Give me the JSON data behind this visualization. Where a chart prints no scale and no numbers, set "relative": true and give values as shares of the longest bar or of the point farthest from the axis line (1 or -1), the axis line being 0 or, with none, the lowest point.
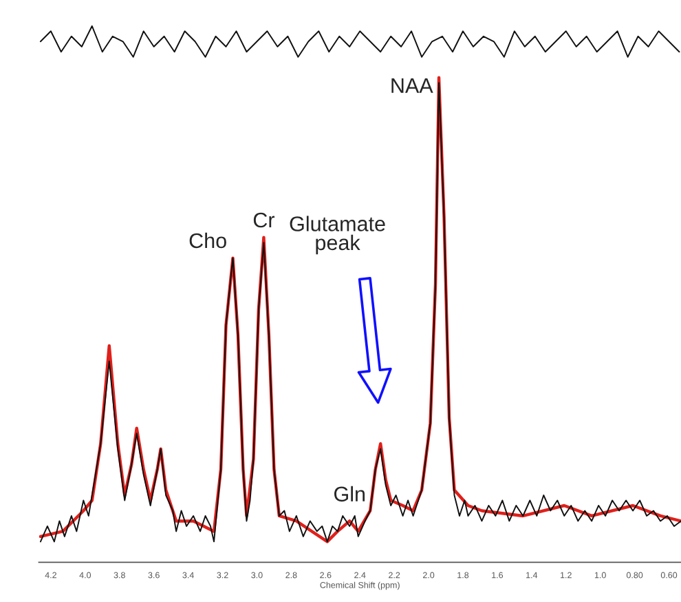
{
  "chart_data": {
    "type": "line",
    "relative": true,
    "xlabel": "Chemical Shift (ppm)",
    "xlim": [
      4.27,
      0.53
    ],
    "xticks": [
      4.2,
      {
        "value": 4,
        "label": "4.0"
      },
      3.8,
      3.6,
      3.4,
      3.2,
      {
        "value": 3,
        "label": "3.0"
      },
      2.8,
      2.6,
      2.4,
      2.2,
      {
        "value": 2,
        "label": "2.0"
      },
      1.8,
      1.6,
      1.4,
      1.2,
      {
        "value": 1,
        "label": "1.0"
      },
      {
        "value": 0.8,
        "label": "0.80"
      },
      {
        "value": 0.6,
        "label": "0.60"
      }
    ],
    "tick_labels": "x",
    "grid": false,
    "marker": "none",
    "line_style": "solid",
    "series": [
      {
        "color": "#e0201b",
        "x": [
          4.26,
          4.13,
          4.01,
          3.96,
          3.91,
          3.86,
          3.81,
          3.77,
          3.73,
          3.7,
          3.66,
          3.62,
          3.58,
          3.56,
          3.53,
          3.47,
          3.37,
          3.25,
          3.21,
          3.18,
          3.14,
          3.11,
          3.08,
          3.06,
          3.02,
          2.99,
          2.96,
          2.93,
          2.9,
          2.87,
          2.77,
          2.59,
          2.53,
          2.46,
          2.41,
          2.34,
          2.31,
          2.28,
          2.25,
          2.22,
          2.15,
          2.09,
          2.04,
          1.99,
          1.96,
          1.94,
          1.91,
          1.88,
          1.85,
          1.77,
          1.69,
          1.45,
          1.21,
          1.05,
          0.81,
          0.65,
          0.53
        ],
        "values": [
          0.01,
          0.02,
          0.06,
          0.08,
          0.19,
          0.38,
          0.19,
          0.09,
          0.15,
          0.22,
          0.14,
          0.08,
          0.14,
          0.18,
          0.1,
          0.04,
          0.04,
          0.02,
          0.14,
          0.42,
          0.55,
          0.4,
          0.14,
          0.05,
          0.16,
          0.45,
          0.59,
          0.4,
          0.14,
          0.05,
          0.04,
          0.0,
          0.02,
          0.04,
          0.02,
          0.06,
          0.14,
          0.19,
          0.12,
          0.08,
          0.07,
          0.06,
          0.1,
          0.23,
          0.5,
          0.9,
          0.63,
          0.24,
          0.1,
          0.07,
          0.06,
          0.05,
          0.07,
          0.05,
          0.07,
          0.05,
          0.04
        ]
      },
      {
        "color": "#111111",
        "x": [
          4.26,
          4.22,
          4.18,
          4.15,
          4.12,
          4.08,
          4.05,
          4.01,
          3.98,
          3.96,
          3.91,
          3.86,
          3.81,
          3.77,
          3.73,
          3.7,
          3.66,
          3.62,
          3.58,
          3.56,
          3.53,
          3.49,
          3.47,
          3.44,
          3.41,
          3.37,
          3.33,
          3.3,
          3.27,
          3.25,
          3.21,
          3.18,
          3.14,
          3.11,
          3.08,
          3.06,
          3.04,
          3.02,
          2.99,
          2.96,
          2.93,
          2.9,
          2.87,
          2.84,
          2.81,
          2.77,
          2.73,
          2.69,
          2.65,
          2.62,
          2.59,
          2.56,
          2.53,
          2.5,
          2.46,
          2.43,
          2.41,
          2.37,
          2.34,
          2.31,
          2.28,
          2.25,
          2.22,
          2.19,
          2.15,
          2.12,
          2.09,
          2.04,
          1.99,
          1.96,
          1.94,
          1.91,
          1.88,
          1.85,
          1.82,
          1.79,
          1.77,
          1.73,
          1.69,
          1.65,
          1.61,
          1.57,
          1.53,
          1.49,
          1.45,
          1.41,
          1.37,
          1.33,
          1.29,
          1.25,
          1.21,
          1.17,
          1.13,
          1.09,
          1.05,
          1.01,
          0.97,
          0.93,
          0.89,
          0.85,
          0.81,
          0.77,
          0.73,
          0.69,
          0.65,
          0.61,
          0.57,
          0.53
        ],
        "values": [
          0.0,
          0.03,
          0.0,
          0.04,
          0.01,
          0.05,
          0.02,
          0.08,
          0.05,
          0.09,
          0.19,
          0.35,
          0.18,
          0.08,
          0.15,
          0.21,
          0.13,
          0.07,
          0.14,
          0.18,
          0.09,
          0.06,
          0.02,
          0.06,
          0.03,
          0.05,
          0.02,
          0.05,
          0.03,
          0.0,
          0.14,
          0.42,
          0.55,
          0.4,
          0.14,
          0.04,
          0.08,
          0.16,
          0.45,
          0.58,
          0.4,
          0.14,
          0.05,
          0.06,
          0.02,
          0.05,
          0.01,
          0.04,
          0.02,
          0.03,
          0.0,
          0.03,
          0.02,
          0.05,
          0.03,
          0.05,
          0.01,
          0.04,
          0.06,
          0.14,
          0.18,
          0.11,
          0.07,
          0.09,
          0.05,
          0.08,
          0.05,
          0.1,
          0.23,
          0.5,
          0.89,
          0.63,
          0.24,
          0.09,
          0.05,
          0.08,
          0.05,
          0.07,
          0.04,
          0.07,
          0.05,
          0.08,
          0.04,
          0.07,
          0.05,
          0.08,
          0.05,
          0.09,
          0.06,
          0.08,
          0.05,
          0.07,
          0.04,
          0.06,
          0.04,
          0.07,
          0.05,
          0.08,
          0.06,
          0.08,
          0.06,
          0.08,
          0.05,
          0.06,
          0.04,
          0.05,
          0.03,
          0.04
        ]
      },
      {
        "color": "#111111",
        "x": [
          4.26,
          4.2,
          4.14,
          4.08,
          4.02,
          3.96,
          3.9,
          3.84,
          3.78,
          3.72,
          3.66,
          3.6,
          3.54,
          3.48,
          3.42,
          3.36,
          3.3,
          3.24,
          3.18,
          3.12,
          3.06,
          3.0,
          2.94,
          2.88,
          2.82,
          2.76,
          2.7,
          2.64,
          2.58,
          2.52,
          2.46,
          2.4,
          2.34,
          2.28,
          2.22,
          2.16,
          2.1,
          2.04,
          1.98,
          1.92,
          1.86,
          1.8,
          1.74,
          1.68,
          1.62,
          1.56,
          1.5,
          1.44,
          1.38,
          1.32,
          1.26,
          1.2,
          1.14,
          1.08,
          1.02,
          0.96,
          0.9,
          0.84,
          0.78,
          0.72,
          0.66,
          0.6,
          0.54
        ],
        "values": [
          0.97,
          0.99,
          0.95,
          0.98,
          0.96,
          1.0,
          0.95,
          0.98,
          0.97,
          0.94,
          0.99,
          0.96,
          0.98,
          0.95,
          0.99,
          0.97,
          0.94,
          0.98,
          0.96,
          0.99,
          0.95,
          0.97,
          0.99,
          0.96,
          0.98,
          0.94,
          0.97,
          0.99,
          0.95,
          0.98,
          0.96,
          0.99,
          0.97,
          0.95,
          0.98,
          0.96,
          0.99,
          0.94,
          0.97,
          0.98,
          0.95,
          0.99,
          0.96,
          0.98,
          0.97,
          0.94,
          0.99,
          0.96,
          0.98,
          0.95,
          0.97,
          0.99,
          0.96,
          0.98,
          0.95,
          0.97,
          0.99,
          0.94,
          0.98,
          0.96,
          0.99,
          0.97,
          0.95
        ]
      }
    ],
    "annotations": [
      {
        "text": "NAA",
        "x": 1.94,
        "y": 0.9
      },
      {
        "text": "Cho",
        "x": 3.14,
        "y": 0.55
      },
      {
        "text": "Cr",
        "x": 2.96,
        "y": 0.59
      },
      "Glutamate\npeak",
      {
        "text": "Gln",
        "x": 2.46,
        "y": 0.04
      }
    ]
  }
}
